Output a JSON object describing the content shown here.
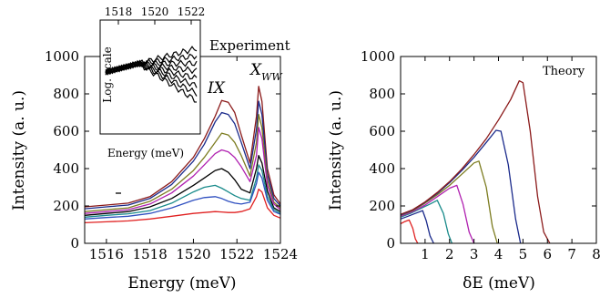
{
  "chart_data": [
    {
      "type": "line",
      "panel": "left",
      "xlabel": "Energy (meV)",
      "ylabel": "Intensity (a. u.)",
      "xlim": [
        1515,
        1524
      ],
      "ylim": [
        0,
        1000
      ],
      "xticks": [
        1516,
        1518,
        1520,
        1522,
        1524
      ],
      "yticks": [
        0,
        200,
        400,
        600,
        800,
        1000
      ],
      "grid": false,
      "annotations": {
        "experiment": "Experiment",
        "ix": "IX",
        "xww_main": "X",
        "xww_sub": "WW"
      },
      "series": [
        {
          "color": "#8b1a1a",
          "x": [
            1515,
            1516,
            1517,
            1518,
            1519,
            1520,
            1520.5,
            1521,
            1521.3,
            1521.6,
            1521.9,
            1522.2,
            1522.6,
            1522.9,
            1523.0,
            1523.15,
            1523.4,
            1523.7,
            1524
          ],
          "y": [
            195,
            205,
            215,
            250,
            330,
            460,
            560,
            680,
            765,
            755,
            700,
            580,
            430,
            680,
            840,
            760,
            400,
            260,
            210
          ]
        },
        {
          "color": "#1a2a8b",
          "x": [
            1515,
            1516,
            1517,
            1518,
            1519,
            1520,
            1520.5,
            1521,
            1521.3,
            1521.6,
            1521.9,
            1522.2,
            1522.6,
            1522.9,
            1523.0,
            1523.15,
            1523.4,
            1523.7,
            1524
          ],
          "y": [
            185,
            195,
            205,
            240,
            315,
            440,
            530,
            650,
            700,
            690,
            640,
            540,
            400,
            610,
            760,
            690,
            370,
            240,
            200
          ]
        },
        {
          "color": "#7c7c20",
          "x": [
            1515,
            1516,
            1517,
            1518,
            1519,
            1520,
            1520.5,
            1521,
            1521.3,
            1521.6,
            1521.9,
            1522.2,
            1522.6,
            1522.9,
            1523.0,
            1523.15,
            1523.4,
            1523.7,
            1524
          ],
          "y": [
            170,
            180,
            190,
            225,
            290,
            390,
            460,
            540,
            590,
            580,
            540,
            470,
            360,
            540,
            690,
            620,
            340,
            220,
            190
          ]
        },
        {
          "color": "#b020b0",
          "x": [
            1515,
            1516,
            1517,
            1518,
            1519,
            1520,
            1520.5,
            1521,
            1521.3,
            1521.6,
            1521.9,
            1522.2,
            1522.6,
            1522.9,
            1523.0,
            1523.15,
            1523.4,
            1523.7,
            1524
          ],
          "y": [
            160,
            170,
            180,
            210,
            270,
            360,
            420,
            480,
            500,
            490,
            460,
            410,
            330,
            470,
            620,
            560,
            310,
            210,
            180
          ]
        },
        {
          "color": "#000000",
          "x": [
            1515,
            1516,
            1517,
            1518,
            1519,
            1520,
            1520.5,
            1521,
            1521.3,
            1521.6,
            1521.9,
            1522.2,
            1522.6,
            1522.9,
            1523.0,
            1523.15,
            1523.4,
            1523.7,
            1524
          ],
          "y": [
            150,
            160,
            170,
            195,
            240,
            310,
            350,
            390,
            400,
            380,
            340,
            290,
            270,
            400,
            470,
            430,
            280,
            190,
            170
          ]
        },
        {
          "color": "#1a8b8b",
          "x": [
            1515,
            1516,
            1517,
            1518,
            1519,
            1520,
            1520.5,
            1521,
            1521.3,
            1521.6,
            1521.9,
            1522.2,
            1522.6,
            1522.9,
            1523.0,
            1523.15,
            1523.4,
            1523.7,
            1524
          ],
          "y": [
            140,
            150,
            158,
            175,
            215,
            275,
            300,
            310,
            295,
            275,
            255,
            240,
            230,
            350,
            420,
            390,
            250,
            180,
            160
          ]
        },
        {
          "color": "#3050c0",
          "x": [
            1515,
            1516,
            1517,
            1518,
            1519,
            1520,
            1520.5,
            1521,
            1521.3,
            1521.6,
            1521.9,
            1522.2,
            1522.6,
            1522.9,
            1523.0,
            1523.15,
            1523.4,
            1523.7,
            1524
          ],
          "y": [
            130,
            138,
            145,
            160,
            190,
            230,
            245,
            250,
            240,
            225,
            215,
            210,
            220,
            320,
            380,
            350,
            230,
            170,
            155
          ]
        },
        {
          "color": "#e02020",
          "x": [
            1515,
            1516,
            1517,
            1518,
            1519,
            1520,
            1520.5,
            1521,
            1521.3,
            1521.6,
            1521.9,
            1522.2,
            1522.6,
            1522.9,
            1523.0,
            1523.15,
            1523.4,
            1523.7,
            1524
          ],
          "y": [
            110,
            115,
            120,
            130,
            145,
            160,
            165,
            170,
            168,
            165,
            165,
            170,
            185,
            250,
            290,
            275,
            190,
            150,
            135
          ]
        }
      ]
    },
    {
      "type": "line",
      "panel": "inset",
      "xlabel": "Energy (meV)",
      "ylabel": "Log. scale",
      "xlim": [
        1517,
        1522.5
      ],
      "xticks": [
        1518,
        1520,
        1522
      ],
      "grid": false
    },
    {
      "type": "line",
      "panel": "right",
      "xlabel": "δE (meV)",
      "ylabel": "Intensity (a. u.)",
      "xlim": [
        0,
        8
      ],
      "ylim": [
        0,
        1000
      ],
      "xticks": [
        1,
        2,
        3,
        4,
        5,
        6,
        7,
        8
      ],
      "yticks": [
        0,
        200,
        400,
        600,
        800,
        1000
      ],
      "grid": false,
      "annotations": {
        "theory": "Theory"
      },
      "series": [
        {
          "color": "#e02020",
          "x": [
            0,
            0.15,
            0.35,
            0.5,
            0.6,
            0.7
          ],
          "y": [
            105,
            115,
            125,
            80,
            25,
            0
          ]
        },
        {
          "color": "#1a2a8b",
          "x": [
            0,
            0.3,
            0.6,
            0.9,
            1.05,
            1.2,
            1.35
          ],
          "y": [
            130,
            145,
            160,
            175,
            120,
            40,
            0
          ]
        },
        {
          "color": "#1a8b8b",
          "x": [
            0,
            0.4,
            0.8,
            1.2,
            1.5,
            1.75,
            1.95,
            2.1
          ],
          "y": [
            140,
            160,
            185,
            210,
            230,
            160,
            50,
            0
          ]
        },
        {
          "color": "#b020b0",
          "x": [
            0,
            0.5,
            1.0,
            1.5,
            2.0,
            2.3,
            2.55,
            2.8,
            3.0
          ],
          "y": [
            145,
            170,
            205,
            250,
            295,
            310,
            210,
            60,
            0
          ]
        },
        {
          "color": "#7c7c20",
          "x": [
            0,
            0.5,
            1.0,
            1.5,
            2.0,
            2.5,
            3.0,
            3.2,
            3.5,
            3.75,
            3.95
          ],
          "y": [
            150,
            175,
            215,
            260,
            310,
            370,
            430,
            440,
            300,
            90,
            0
          ]
        },
        {
          "color": "#1a2a8b",
          "x": [
            0,
            0.5,
            1.0,
            1.5,
            2.0,
            2.5,
            3.0,
            3.5,
            3.9,
            4.1,
            4.4,
            4.7,
            4.9
          ],
          "y": [
            152,
            178,
            220,
            268,
            325,
            390,
            460,
            540,
            605,
            600,
            420,
            130,
            0
          ]
        },
        {
          "color": "#8b1a1a",
          "x": [
            0,
            0.5,
            1.0,
            1.5,
            2.0,
            2.5,
            3.0,
            3.5,
            4.0,
            4.5,
            4.85,
            5.0,
            5.3,
            5.6,
            5.85,
            6.1
          ],
          "y": [
            155,
            180,
            222,
            272,
            330,
            398,
            475,
            560,
            660,
            770,
            870,
            860,
            600,
            250,
            60,
            0
          ]
        }
      ]
    }
  ]
}
